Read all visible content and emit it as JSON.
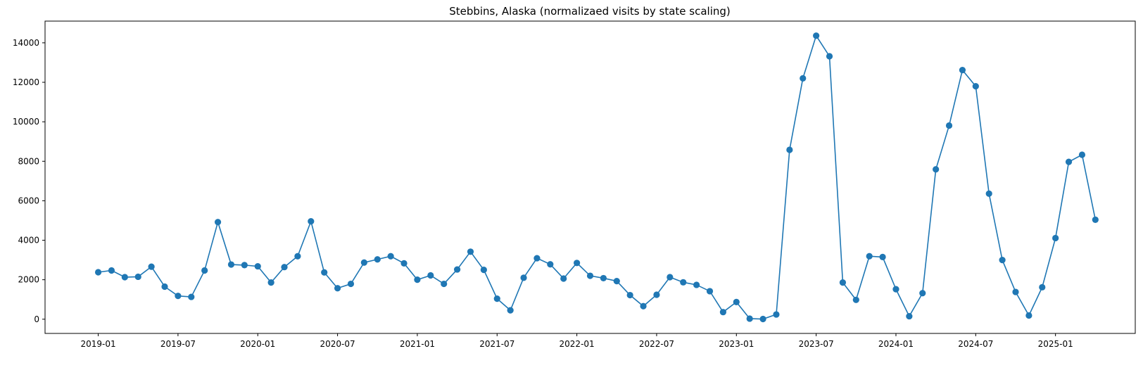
{
  "chart_data": {
    "type": "line",
    "title": "Stebbins, Alaska (normalizaed visits by state scaling)",
    "xlabel": "",
    "ylabel": "",
    "x_tick_labels": [
      "2019-01",
      "2019-07",
      "2020-01",
      "2020-07",
      "2021-01",
      "2021-07",
      "2022-01",
      "2022-07",
      "2023-01",
      "2023-07",
      "2024-01",
      "2024-07",
      "2025-01"
    ],
    "y_tick_labels": [
      "0",
      "2000",
      "4000",
      "6000",
      "8000",
      "10000",
      "12000",
      "14000"
    ],
    "xlim": [
      "2018-09-01",
      "2025-07-01"
    ],
    "ylim": [
      -720,
      15100
    ],
    "grid": false,
    "legend": "none",
    "color": "#1f77b4",
    "series": [
      {
        "x": [
          "2019-01",
          "2019-02",
          "2019-03",
          "2019-04",
          "2019-05",
          "2019-06",
          "2019-07",
          "2019-08",
          "2019-09",
          "2019-10",
          "2019-11",
          "2019-12",
          "2020-01",
          "2020-02",
          "2020-03",
          "2020-04",
          "2020-05",
          "2020-06",
          "2020-07",
          "2020-08",
          "2020-09",
          "2020-10",
          "2020-11",
          "2020-12",
          "2021-01",
          "2021-02",
          "2021-03",
          "2021-04",
          "2021-05",
          "2021-06",
          "2021-07",
          "2021-08",
          "2021-09",
          "2021-10",
          "2021-11",
          "2021-12",
          "2022-01",
          "2022-02",
          "2022-03",
          "2022-04",
          "2022-05",
          "2022-06",
          "2022-07",
          "2022-08",
          "2022-09",
          "2022-10",
          "2022-11",
          "2022-12",
          "2023-01",
          "2023-02",
          "2023-03",
          "2023-04",
          "2023-05",
          "2023-06",
          "2023-07",
          "2023-08",
          "2023-09",
          "2023-10",
          "2023-11",
          "2023-12",
          "2024-01",
          "2024-02",
          "2024-03",
          "2024-04",
          "2024-05",
          "2024-06",
          "2024-07",
          "2024-08",
          "2024-09",
          "2024-10",
          "2024-11",
          "2024-12",
          "2025-01",
          "2025-02",
          "2025-03",
          "2025-04"
        ],
        "values": [
          2380,
          2470,
          2130,
          2150,
          2660,
          1650,
          1180,
          1130,
          2470,
          4920,
          2770,
          2740,
          2680,
          1860,
          2640,
          3190,
          4960,
          2370,
          1570,
          1790,
          2870,
          3030,
          3190,
          2830,
          2000,
          2220,
          1790,
          2520,
          3420,
          2500,
          1040,
          450,
          2100,
          3090,
          2780,
          2060,
          2850,
          2200,
          2080,
          1930,
          1220,
          660,
          1240,
          2130,
          1870,
          1740,
          1420,
          360,
          870,
          30,
          10,
          240,
          8580,
          12200,
          14360,
          13320,
          1860,
          980,
          3190,
          3150,
          1520,
          150,
          1320,
          7590,
          9810,
          12620,
          11800,
          6360,
          3000,
          1380,
          190,
          1620,
          4110,
          7970,
          8330,
          5040
        ]
      }
    ]
  }
}
